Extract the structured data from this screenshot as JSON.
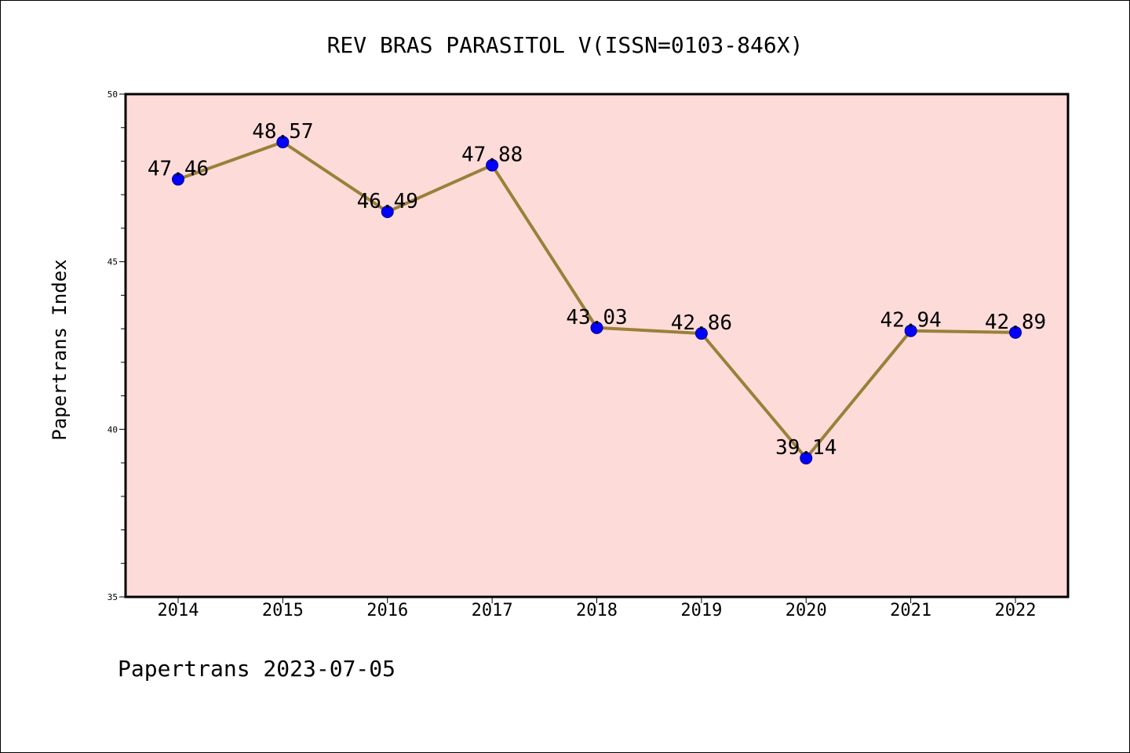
{
  "chart_data": {
    "type": "line",
    "title": "REV BRAS PARASITOL V(ISSN=0103-846X)",
    "xlabel": "",
    "ylabel": "Papertrans Index",
    "categories": [
      "2014",
      "2015",
      "2016",
      "2017",
      "2018",
      "2019",
      "2020",
      "2021",
      "2022"
    ],
    "series": [
      {
        "values": [
          47.46,
          48.57,
          46.49,
          47.88,
          43.03,
          42.86,
          39.14,
          42.94,
          42.89
        ],
        "labels": [
          "47.46",
          "48.57",
          "46.49",
          "47.88",
          "43.03",
          "42.86",
          "39.14",
          "42.94",
          "42.89"
        ]
      }
    ],
    "ylim": [
      35,
      50
    ],
    "yticks": [
      "35",
      "40",
      "45",
      "50"
    ],
    "grid": false,
    "legend": "none",
    "colors": {
      "plot_background": "#fddbd9",
      "line": "#9a8039",
      "marker_fill": "#0000ff",
      "marker_edge": "#00008b",
      "axes": "#000000"
    }
  },
  "footer": {
    "text": "Papertrans 2023-07-05"
  }
}
